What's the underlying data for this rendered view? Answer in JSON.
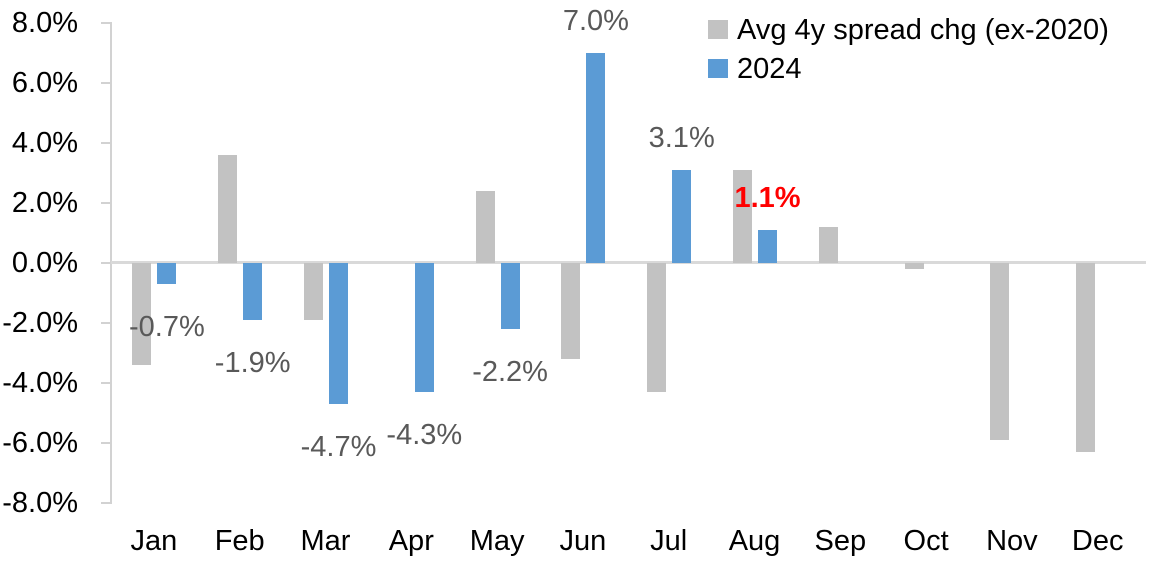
{
  "chart_data": {
    "type": "bar",
    "title": "",
    "xlabel": "",
    "ylabel": "",
    "categories": [
      "Jan",
      "Feb",
      "Mar",
      "Apr",
      "May",
      "Jun",
      "Jul",
      "Aug",
      "Sep",
      "Oct",
      "Nov",
      "Dec"
    ],
    "series": [
      {
        "name": "Avg 4y spread chg (ex-2020)",
        "color": "#c2c2c2",
        "values": [
          -3.4,
          3.6,
          -1.9,
          0.0,
          2.4,
          -3.2,
          -4.3,
          3.1,
          1.2,
          -0.2,
          -5.9,
          -6.3
        ]
      },
      {
        "name": "2024",
        "color": "#5b9bd5",
        "values": [
          -0.7,
          -1.9,
          -4.7,
          -4.3,
          -2.2,
          7.0,
          3.1,
          1.1,
          null,
          null,
          null,
          null
        ]
      }
    ],
    "data_labels": [
      {
        "series": "2024",
        "category": "Jan",
        "text": "-0.7%",
        "color": "#595959",
        "bold": false
      },
      {
        "series": "2024",
        "category": "Feb",
        "text": "-1.9%",
        "color": "#595959",
        "bold": false
      },
      {
        "series": "2024",
        "category": "Mar",
        "text": "-4.7%",
        "color": "#595959",
        "bold": false
      },
      {
        "series": "2024",
        "category": "Apr",
        "text": "-4.3%",
        "color": "#595959",
        "bold": false
      },
      {
        "series": "2024",
        "category": "May",
        "text": "-2.2%",
        "color": "#595959",
        "bold": false
      },
      {
        "series": "2024",
        "category": "Jun",
        "text": "7.0%",
        "color": "#595959",
        "bold": false
      },
      {
        "series": "2024",
        "category": "Jul",
        "text": "3.1%",
        "color": "#595959",
        "bold": false
      },
      {
        "series": "2024",
        "category": "Aug",
        "text": "1.1%",
        "color": "#ff0000",
        "bold": true
      }
    ],
    "y_axis": {
      "min": -8,
      "max": 8,
      "tick_step": 2,
      "tick_labels": [
        "8.0%",
        "6.0%",
        "4.0%",
        "2.0%",
        "0.0%",
        "-2.0%",
        "-4.0%",
        "-6.0%",
        "-8.0%"
      ]
    },
    "legend": {
      "position": "top-right",
      "entries": [
        {
          "label": "Avg 4y spread chg (ex-2020)",
          "color": "#c2c2c2"
        },
        {
          "label": "2024",
          "color": "#5b9bd5"
        }
      ]
    },
    "grid": false,
    "background": "#ffffff"
  }
}
